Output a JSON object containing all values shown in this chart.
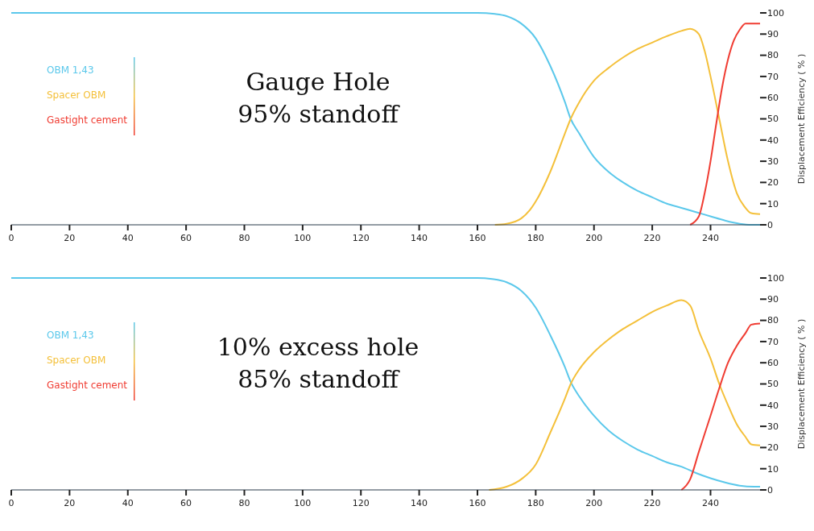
{
  "chart_data": [
    {
      "type": "line",
      "title": "Gauge Hole",
      "subtitle": "95% standoff",
      "ylabel": "Displacement Efficiency ( % )",
      "xlim": [
        0,
        257
      ],
      "xticks": [
        0,
        20,
        40,
        60,
        80,
        100,
        120,
        140,
        160,
        180,
        200,
        220,
        240
      ],
      "ylim": [
        0,
        100
      ],
      "yticks": [
        0,
        10,
        20,
        30,
        40,
        50,
        60,
        70,
        80,
        90,
        100
      ],
      "legend": "left",
      "grid": false,
      "series": [
        {
          "name": "OBM 1,43",
          "color": "#5bc8eb",
          "x": [
            0,
            160,
            166,
            170,
            175,
            180,
            185,
            190,
            192,
            195,
            200,
            205,
            210,
            215,
            220,
            225,
            230,
            235,
            240,
            245,
            250,
            254,
            257
          ],
          "values": [
            100,
            100,
            99.5,
            98.5,
            95,
            88,
            75,
            58,
            50,
            43,
            32,
            25,
            20,
            16,
            13,
            10,
            8,
            6,
            4,
            2,
            0.5,
            0,
            0
          ]
        },
        {
          "name": "Spacer OBM",
          "color": "#f4c03a",
          "x": [
            166,
            170,
            175,
            178,
            180,
            185,
            190,
            192,
            195,
            200,
            205,
            210,
            215,
            220,
            225,
            230,
            233,
            236,
            238,
            240,
            243,
            246,
            249,
            252,
            254,
            257
          ],
          "values": [
            0,
            0.5,
            3,
            7,
            11,
            25,
            43,
            50,
            58,
            68,
            74,
            79,
            83,
            86,
            89,
            91.5,
            92.5,
            90,
            82,
            70,
            50,
            30,
            15,
            8,
            5.5,
            5
          ]
        },
        {
          "name": "Gastight cement",
          "color": "#f03c32",
          "x": [
            233,
            236,
            238,
            240,
            242,
            244,
            246,
            248,
            250,
            252,
            254,
            257
          ],
          "values": [
            0,
            4,
            15,
            30,
            48,
            65,
            78,
            87,
            92,
            95,
            95,
            95
          ]
        }
      ]
    },
    {
      "type": "line",
      "title": "10% excess hole",
      "subtitle": "85% standoff",
      "ylabel": "Displacement Efficiency ( % )",
      "xlim": [
        0,
        257
      ],
      "xticks": [
        0,
        20,
        40,
        60,
        80,
        100,
        120,
        140,
        160,
        180,
        200,
        220,
        240
      ],
      "ylim": [
        0,
        100
      ],
      "yticks": [
        0,
        10,
        20,
        30,
        40,
        50,
        60,
        70,
        80,
        90,
        100
      ],
      "legend": "left",
      "grid": false,
      "series": [
        {
          "name": "OBM 1,43",
          "color": "#5bc8eb",
          "x": [
            0,
            160,
            165,
            170,
            175,
            180,
            185,
            190,
            192,
            195,
            200,
            205,
            210,
            215,
            220,
            225,
            230,
            235,
            240,
            245,
            250,
            255,
            257
          ],
          "values": [
            100,
            100,
            99.5,
            98,
            94,
            86,
            73,
            58,
            51,
            44,
            35,
            28,
            23,
            19,
            16,
            13,
            11,
            8,
            5.5,
            3.5,
            2,
            1.5,
            1.5
          ]
        },
        {
          "name": "Spacer OBM",
          "color": "#f4c03a",
          "x": [
            164,
            170,
            175,
            180,
            185,
            190,
            192,
            195,
            200,
            205,
            210,
            215,
            220,
            225,
            230,
            233,
            236,
            240,
            243,
            246,
            249,
            252,
            254,
            257
          ],
          "values": [
            0,
            1.5,
            5,
            12,
            27,
            43,
            50,
            57,
            65,
            71,
            76,
            80,
            84,
            87,
            89.5,
            87,
            75,
            62,
            50,
            40,
            31,
            25,
            21.5,
            21
          ]
        },
        {
          "name": "Gastight cement",
          "color": "#f03c32",
          "x": [
            230,
            233,
            236,
            240,
            243,
            246,
            249,
            252,
            254,
            257
          ],
          "values": [
            0,
            5,
            18,
            35,
            48,
            60,
            68,
            74,
            78,
            78.5
          ]
        }
      ]
    }
  ]
}
